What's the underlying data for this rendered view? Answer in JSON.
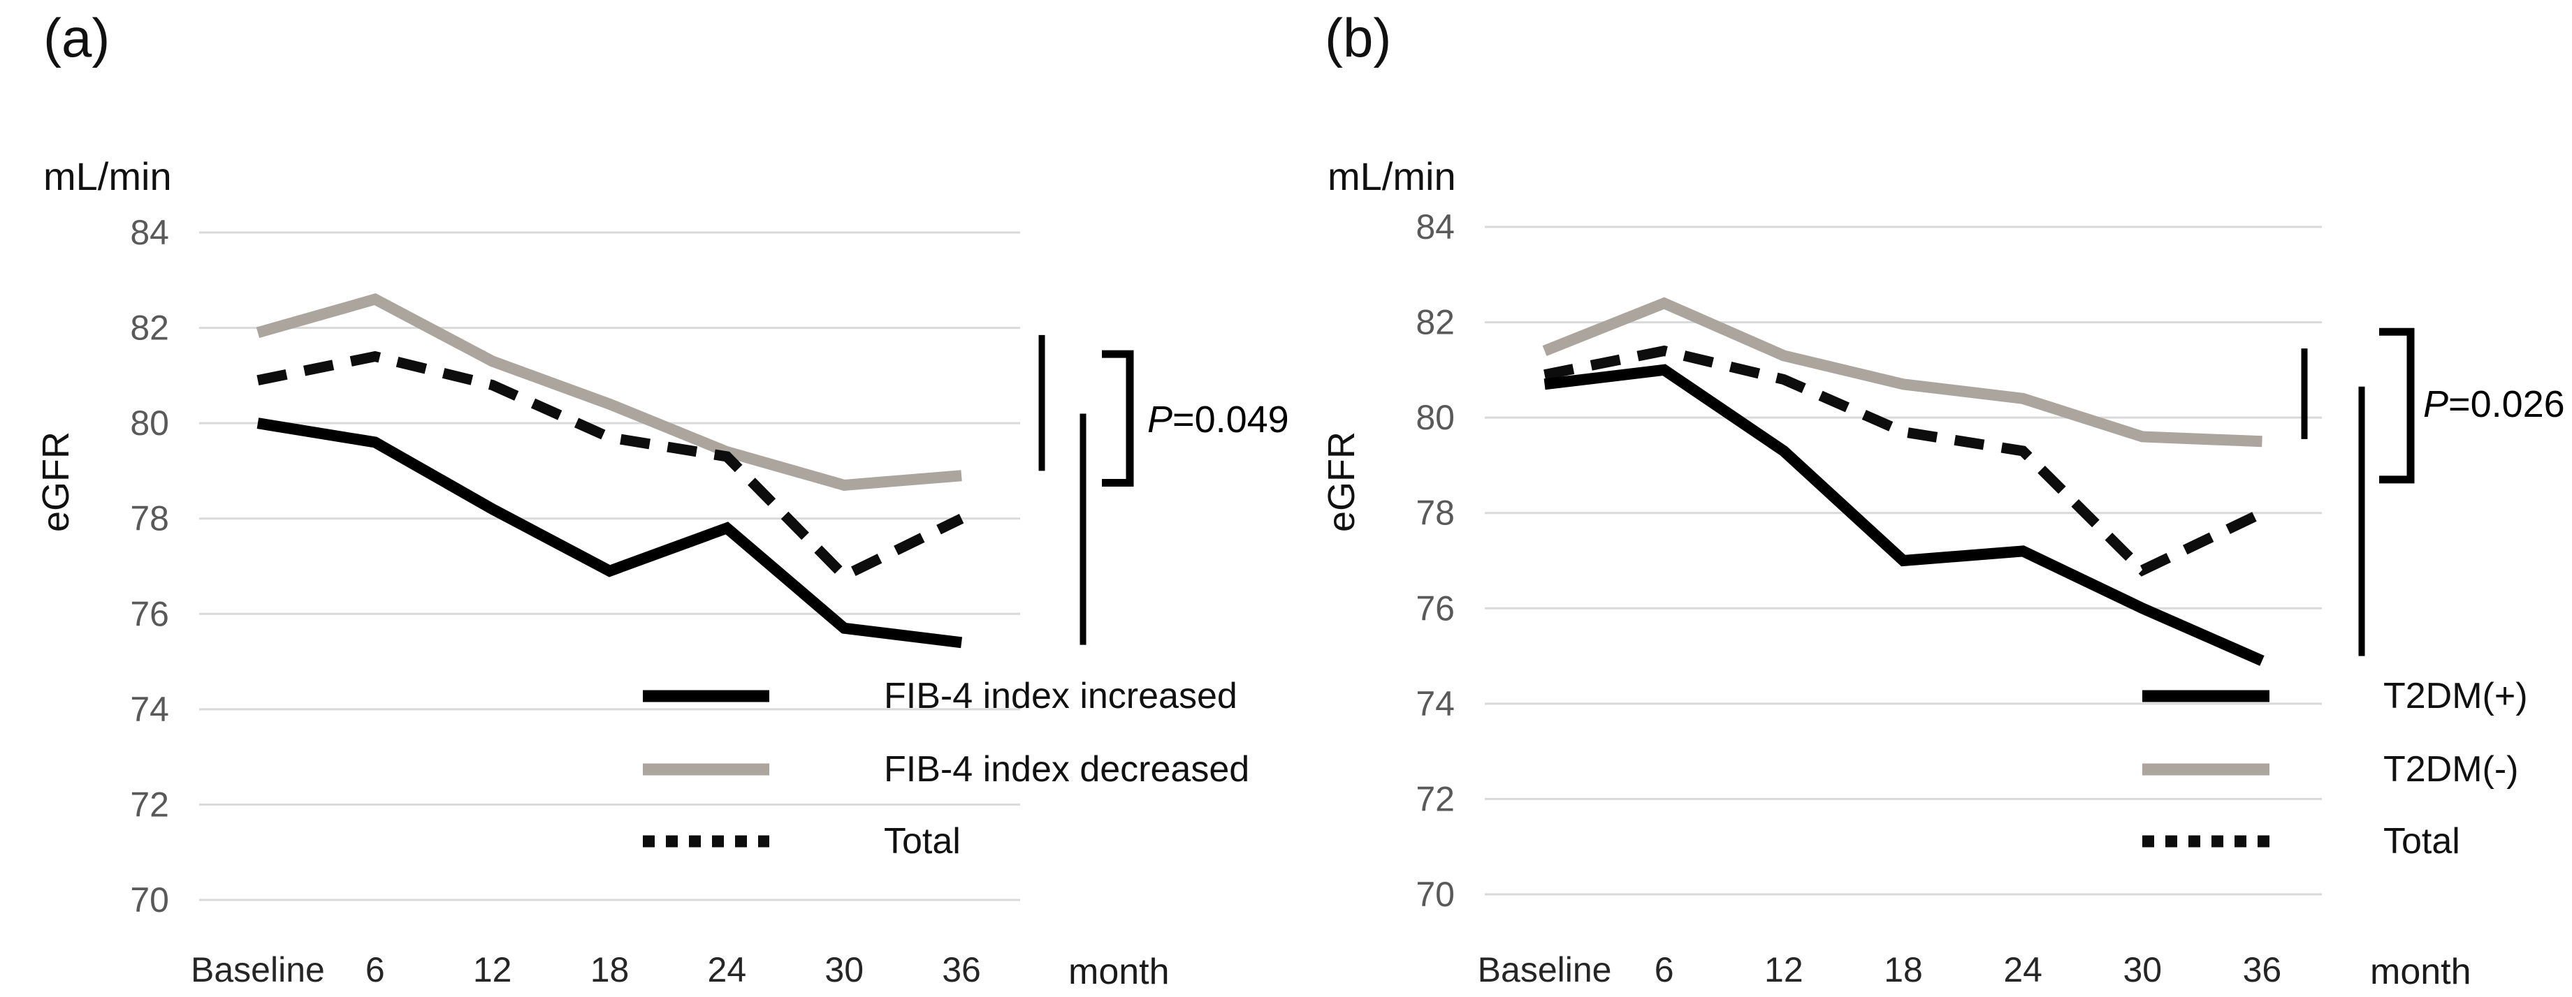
{
  "figure": {
    "background": "#ffffff",
    "colors": {
      "gridline": "#d9d9d9",
      "tick_label": "#595959",
      "category_label": "#262626",
      "annotation": "#000000"
    }
  },
  "chart_data": [
    {
      "type": "line",
      "panel_label": "(a)",
      "unit_label": "mL/min",
      "ylabel": "eGFR",
      "xlabel": "month",
      "categories": [
        "Baseline",
        "6",
        "12",
        "18",
        "24",
        "30",
        "36"
      ],
      "y_ticks": [
        84,
        82,
        80,
        78,
        76,
        74,
        72,
        70
      ],
      "ylim": [
        70,
        84
      ],
      "grid": true,
      "legend_position": "inside-lower-right",
      "series": [
        {
          "name": "FIB-4 index increased",
          "line_style": "solid",
          "color": "#000000",
          "values": [
            80.0,
            79.6,
            78.2,
            76.9,
            77.8,
            75.7,
            75.4
          ]
        },
        {
          "name": "FIB-4 index decreased",
          "line_style": "solid",
          "color": "#aba59e",
          "values": [
            81.9,
            82.6,
            81.3,
            80.4,
            79.4,
            78.7,
            78.9
          ]
        },
        {
          "name": "Total",
          "line_style": "dashed",
          "color": "#0d0d0d",
          "values": [
            80.9,
            81.4,
            80.8,
            79.7,
            79.3,
            76.8,
            78.0
          ]
        }
      ],
      "p_label": {
        "prefix": "P",
        "rest": "=0.049"
      },
      "comparison_bars": [
        {
          "x": 1491,
          "from": 81.85,
          "to": 79.0,
          "w": 9
        },
        {
          "x": 1550,
          "from": 80.2,
          "to": 75.35,
          "w": 9
        }
      ],
      "bracket": {
        "x": 1617,
        "from": 81.45,
        "to": 78.75,
        "cap": 40,
        "w": 11
      },
      "layout": {
        "plot_x": [
          285,
          1460
        ],
        "y_of_top_tick": 333,
        "y_of_bottom_tick": 1289,
        "tick_label_x": 242,
        "cat_label_y": 1406,
        "legend": {
          "sample_x": 920,
          "sample_w": 181,
          "rows_y": [
            997,
            1102,
            1205
          ]
        }
      }
    },
    {
      "type": "line",
      "panel_label": "(b)",
      "unit_label": "mL/min",
      "ylabel": "eGFR",
      "xlabel": "month",
      "categories": [
        "Baseline",
        "6",
        "12",
        "18",
        "24",
        "30",
        "36"
      ],
      "y_ticks": [
        84,
        82,
        80,
        78,
        76,
        74,
        72,
        70
      ],
      "ylim": [
        70,
        84
      ],
      "grid": true,
      "legend_position": "inside-lower-right",
      "series": [
        {
          "name": "T2DM(+)",
          "line_style": "solid",
          "color": "#000000",
          "values": [
            80.7,
            81.0,
            79.3,
            77.0,
            77.2,
            76.0,
            74.9
          ]
        },
        {
          "name": "T2DM(-)",
          "line_style": "solid",
          "color": "#aba59e",
          "values": [
            81.4,
            82.4,
            81.3,
            80.7,
            80.4,
            79.6,
            79.5
          ]
        },
        {
          "name": "Total",
          "line_style": "dashed",
          "color": "#0d0d0d",
          "values": [
            80.9,
            81.4,
            80.8,
            79.7,
            79.3,
            76.8,
            78.0
          ]
        }
      ],
      "p_label": {
        "prefix": "P",
        "rest": "=0.026"
      },
      "comparison_bars": [
        {
          "x": 3298,
          "from": 81.45,
          "to": 79.55,
          "w": 9
        },
        {
          "x": 3380,
          "from": 80.65,
          "to": 75.0,
          "w": 9
        }
      ],
      "bracket": {
        "x": 3450,
        "from": 81.8,
        "to": 78.7,
        "cap": 45,
        "w": 11
      },
      "layout": {
        "plot_x": [
          2125,
          3323
        ],
        "y_of_top_tick": 325,
        "y_of_bottom_tick": 1281,
        "tick_label_x": 2082,
        "cat_label_y": 1406,
        "legend": {
          "sample_x": 3066,
          "sample_w": 182,
          "rows_y": [
            997,
            1102,
            1205
          ]
        }
      }
    }
  ]
}
